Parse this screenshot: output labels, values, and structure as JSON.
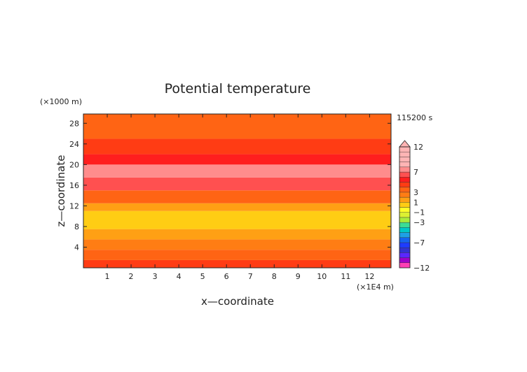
{
  "chart_data": {
    "type": "heatmap",
    "title": "Potential temperature",
    "time_label": "115200 s",
    "xlabel": "x—coordinate",
    "ylabel": "z—coordinate",
    "x_unit": "(×1E4 m)",
    "y_unit": "(×1000 m)",
    "xlim": [
      0,
      12.9
    ],
    "ylim": [
      0,
      29.8
    ],
    "x_ticks": [
      1,
      2,
      3,
      4,
      5,
      6,
      7,
      8,
      9,
      10,
      11,
      12
    ],
    "y_ticks": [
      4,
      8,
      12,
      16,
      20,
      24,
      28
    ],
    "grid": false,
    "colorbar": {
      "levels": [
        -12,
        -11,
        -10,
        -9,
        -8,
        -7,
        -6,
        -5,
        -4,
        -3,
        -2,
        -1,
        0,
        1,
        2,
        3,
        4,
        5,
        6,
        7,
        8,
        9,
        10,
        11,
        12
      ],
      "labels": [
        "12",
        "7",
        "3",
        "1",
        "−1",
        "−3",
        "−7",
        "−12"
      ],
      "label_values": [
        12,
        7,
        3,
        1,
        -1,
        -3,
        -7,
        -12
      ],
      "colors": [
        "#ff3fb4",
        "#a000c8",
        "#5a28ff",
        "#3232d2",
        "#1e3cff",
        "#1464f0",
        "#1ea0e6",
        "#00c8c8",
        "#3cdc96",
        "#aaeb3c",
        "#dcf032",
        "#ffff28",
        "#ffcd14",
        "#ffa014",
        "#ff7d14",
        "#ff6414",
        "#ff3c14",
        "#ff1e1e",
        "#ff5050",
        "#ff8c8c",
        "#ffb4b4"
      ],
      "extend": "max"
    },
    "layers": [
      {
        "z": [
          0,
          1.5
        ],
        "value": 0.2
      },
      {
        "z": [
          1.5,
          3.5
        ],
        "value": -0.3
      },
      {
        "z": [
          3.5,
          5.5
        ],
        "value": -1.2
      },
      {
        "z": [
          5.5,
          7.5
        ],
        "value": -2.2
      },
      {
        "z": [
          7.5,
          11
        ],
        "value": -3.6
      },
      {
        "z": [
          11,
          12.5
        ],
        "value": -2.2
      },
      {
        "z": [
          12.5,
          15
        ],
        "value": -0.2
      },
      {
        "z": [
          15,
          17.5
        ],
        "value": 2.2
      },
      {
        "z": [
          17.5,
          20
        ],
        "value": 3.3
      },
      {
        "z": [
          20,
          22
        ],
        "value": 1.2
      },
      {
        "z": [
          22,
          25
        ],
        "value": 0.1
      },
      {
        "z": [
          25,
          29.8
        ],
        "value": -0.5
      }
    ]
  }
}
